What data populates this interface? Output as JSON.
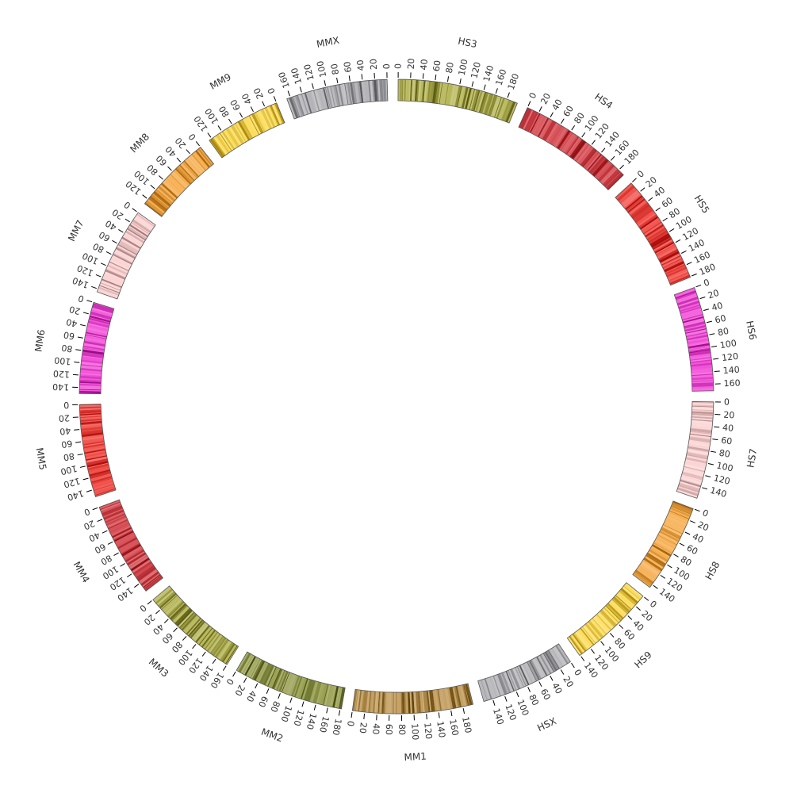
{
  "chart_data": {
    "type": "circos-ideogram",
    "tick_step": 20,
    "chromosomes": [
      {
        "id": "HS3",
        "label": "HS3",
        "length": 198,
        "color": "#b6b657",
        "dark": "#5b5b13",
        "ticks": [
          0,
          20,
          40,
          60,
          80,
          100,
          120,
          140,
          160,
          180
        ]
      },
      {
        "id": "HS4",
        "label": "HS4",
        "length": 191,
        "color": "#d4464d",
        "dark": "#8b0e12",
        "ticks": [
          0,
          20,
          40,
          60,
          80,
          100,
          120,
          140,
          160,
          180
        ]
      },
      {
        "id": "HS5",
        "label": "HS5",
        "length": 181,
        "color": "#f04a44",
        "dark": "#a80b08",
        "ticks": [
          0,
          20,
          40,
          60,
          80,
          100,
          120,
          140,
          160,
          180
        ]
      },
      {
        "id": "HS6",
        "label": "HS6",
        "length": 171,
        "color": "#f24fd8",
        "dark": "#9a0c86",
        "ticks": [
          0,
          20,
          40,
          60,
          80,
          100,
          120,
          140,
          160
        ]
      },
      {
        "id": "HS7",
        "label": "HS7",
        "length": 159,
        "color": "#fbd3d3",
        "dark": "#a07878",
        "ticks": [
          0,
          20,
          40,
          60,
          80,
          100,
          120,
          140
        ]
      },
      {
        "id": "HS8",
        "label": "HS8",
        "length": 146,
        "color": "#f6ad4e",
        "dark": "#a8650b",
        "ticks": [
          0,
          20,
          40,
          60,
          80,
          100,
          120,
          140
        ]
      },
      {
        "id": "HS9",
        "label": "HS9",
        "length": 141,
        "color": "#fbdc5a",
        "dark": "#a8860b",
        "ticks": [
          0,
          20,
          40,
          60,
          80,
          100,
          120,
          140
        ]
      },
      {
        "id": "HSX",
        "label": "HSX",
        "length": 155,
        "color": "#b4b4b8",
        "dark": "#58585c",
        "ticks": [
          0,
          20,
          40,
          60,
          80,
          100,
          120,
          140
        ]
      },
      {
        "id": "MM1",
        "label": "MM1",
        "length": 197,
        "color": "#c09a5a",
        "dark": "#5e4207",
        "ticks": [
          0,
          20,
          40,
          60,
          80,
          100,
          120,
          140,
          160,
          180
        ]
      },
      {
        "id": "MM2",
        "label": "MM2",
        "length": 182,
        "color": "#99a052",
        "dark": "#444a0c",
        "ticks": [
          0,
          20,
          40,
          60,
          80,
          100,
          120,
          140,
          160,
          180
        ]
      },
      {
        "id": "MM3",
        "label": "MM3",
        "length": 160,
        "color": "#b6b657",
        "dark": "#5b5b13",
        "ticks": [
          0,
          20,
          40,
          60,
          80,
          100,
          120,
          140,
          160
        ]
      },
      {
        "id": "MM4",
        "label": "MM4",
        "length": 156,
        "color": "#d4464d",
        "dark": "#8b0e12",
        "ticks": [
          0,
          20,
          40,
          60,
          80,
          100,
          120,
          140
        ]
      },
      {
        "id": "MM5",
        "label": "MM5",
        "length": 152,
        "color": "#f04a44",
        "dark": "#a80b08",
        "ticks": [
          0,
          20,
          40,
          60,
          80,
          100,
          120,
          140
        ]
      },
      {
        "id": "MM6",
        "label": "MM6",
        "length": 150,
        "color": "#f24fd8",
        "dark": "#9a0c86",
        "ticks": [
          0,
          20,
          40,
          60,
          80,
          100,
          120,
          140
        ]
      },
      {
        "id": "MM7",
        "label": "MM7",
        "length": 145,
        "color": "#fbd3d3",
        "dark": "#a07878",
        "ticks": [
          0,
          20,
          40,
          60,
          80,
          100,
          120,
          140
        ]
      },
      {
        "id": "MM8",
        "label": "MM8",
        "length": 129,
        "color": "#f6ad4e",
        "dark": "#a8650b",
        "ticks": [
          0,
          20,
          40,
          60,
          80,
          100,
          120
        ]
      },
      {
        "id": "MM9",
        "label": "MM9",
        "length": 125,
        "color": "#fbdc5a",
        "dark": "#a8860b",
        "ticks": [
          0,
          20,
          40,
          60,
          80,
          100,
          120
        ]
      },
      {
        "id": "MMX",
        "label": "MMX",
        "length": 166,
        "color": "#b4b4b8",
        "dark": "#58585c",
        "ticks": [
          0,
          20,
          40,
          60,
          80,
          100,
          120,
          140,
          160
        ]
      }
    ]
  }
}
